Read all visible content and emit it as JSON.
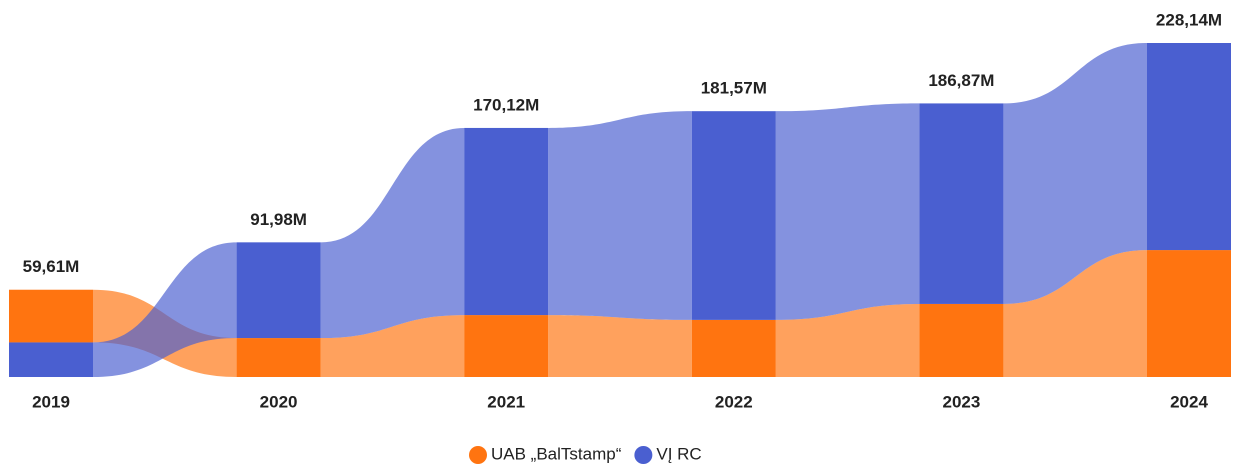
{
  "chart_data": {
    "type": "ribbon",
    "categories": [
      "2019",
      "2020",
      "2021",
      "2022",
      "2023",
      "2024"
    ],
    "series": [
      {
        "name": "UAB „BalTstamp“",
        "color": "#ff7410",
        "values": [
          36.0,
          26.6,
          42.3,
          39.0,
          49.9,
          86.7
        ]
      },
      {
        "name": "VĮ RC",
        "color": "#4a5fd0",
        "values": [
          23.61,
          65.38,
          127.82,
          142.57,
          136.97,
          141.44
        ]
      }
    ],
    "totals": [
      59.61,
      91.98,
      170.12,
      181.57,
      186.87,
      228.14
    ],
    "total_labels": [
      "59,61M",
      "91,98M",
      "170,12M",
      "181,57M",
      "186,87M",
      "228,14M"
    ]
  }
}
